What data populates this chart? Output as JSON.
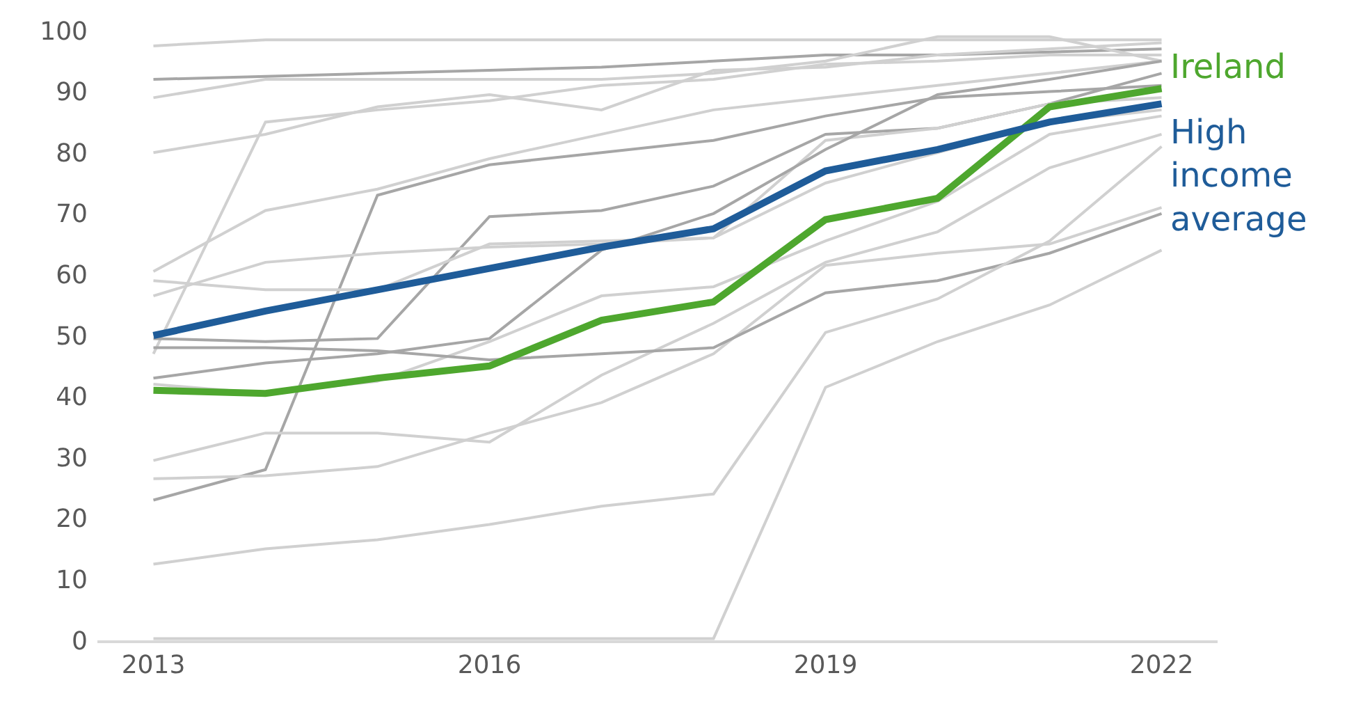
{
  "chart_data": {
    "type": "line",
    "x": [
      2013,
      2014,
      2015,
      2016,
      2017,
      2018,
      2019,
      2020,
      2021,
      2022
    ],
    "xlim": [
      2012.5,
      2022.5
    ],
    "xticks": [
      2013,
      2016,
      2019,
      2022
    ],
    "ylim": [
      0,
      100
    ],
    "yticks": [
      0,
      10,
      20,
      30,
      40,
      50,
      60,
      70,
      80,
      90,
      100
    ],
    "legend": false,
    "series": [
      {
        "color": "#d0d0d0",
        "values": [
          97.5,
          98.5,
          98.5,
          98.5,
          98.5,
          98.5,
          98.5,
          98.5,
          98.5,
          98.5
        ]
      },
      {
        "color": "#a6a6a6",
        "values": [
          92,
          92.5,
          93,
          93.5,
          94,
          95,
          96,
          96,
          96.5,
          97
        ]
      },
      {
        "color": "#d0d0d0",
        "values": [
          89,
          92,
          92,
          92,
          92,
          93,
          95,
          99,
          99,
          95
        ]
      },
      {
        "color": "#d0d0d0",
        "values": [
          80,
          83,
          87.5,
          89.5,
          87,
          93.5,
          94,
          96,
          97,
          98
        ]
      },
      {
        "color": "#d0d0d0",
        "values": [
          47,
          85,
          87,
          88.5,
          91,
          92,
          94.5,
          95,
          96,
          96
        ]
      },
      {
        "color": "#d0d0d0",
        "values": [
          60.5,
          70.5,
          74,
          79,
          83,
          87,
          89,
          91,
          93,
          95
        ]
      },
      {
        "color": "#a6a6a6",
        "values": [
          49.5,
          49,
          49.5,
          69.5,
          70.5,
          74.5,
          83,
          84,
          88,
          93
        ]
      },
      {
        "color": "#a6a6a6",
        "values": [
          23,
          28,
          73,
          78,
          80,
          82,
          86,
          89,
          90,
          91
        ]
      },
      {
        "color": "#d0d0d0",
        "values": [
          59,
          57.5,
          57.5,
          65,
          65.5,
          66,
          82,
          84,
          88,
          89
        ]
      },
      {
        "color": "#d0d0d0",
        "values": [
          56.5,
          62,
          63.5,
          64.5,
          65,
          66,
          75,
          80,
          85,
          87
        ]
      },
      {
        "color": "#a6a6a6",
        "values": [
          43,
          45.5,
          47,
          49.5,
          64,
          70,
          80.5,
          89.5,
          92,
          95
        ]
      },
      {
        "color": "#d0d0d0",
        "values": [
          42,
          40.5,
          42.5,
          49,
          56.5,
          58,
          65.5,
          72,
          83,
          86
        ]
      },
      {
        "color": "#d0d0d0",
        "values": [
          29.5,
          34,
          34,
          32.5,
          43.5,
          52,
          62,
          67,
          77.5,
          83
        ]
      },
      {
        "color": "#d0d0d0",
        "values": [
          26.5,
          27,
          28.5,
          34,
          39,
          47,
          61.5,
          63.5,
          65,
          71
        ]
      },
      {
        "color": "#a6a6a6",
        "values": [
          48,
          48,
          47.5,
          46,
          47,
          48,
          57,
          59,
          63.5,
          70
        ]
      },
      {
        "color": "#d0d0d0",
        "values": [
          12.5,
          15,
          16.5,
          19,
          22,
          24,
          50.5,
          56,
          65.5,
          81
        ]
      },
      {
        "color": "#d0d0d0",
        "values": [
          0.3,
          0.3,
          0.3,
          0.3,
          0.3,
          0.3,
          41.5,
          49,
          55,
          64
        ]
      },
      {
        "name": "Ireland",
        "color": "#4ea72e",
        "values": [
          41,
          40.5,
          43,
          45,
          52.5,
          55.5,
          69,
          72.5,
          87.5,
          90.5
        ]
      },
      {
        "name": "High income average",
        "color": "#1f5c99",
        "values": [
          50,
          54,
          57.5,
          61,
          64.5,
          67.5,
          77,
          80.5,
          85,
          88
        ]
      }
    ]
  }
}
